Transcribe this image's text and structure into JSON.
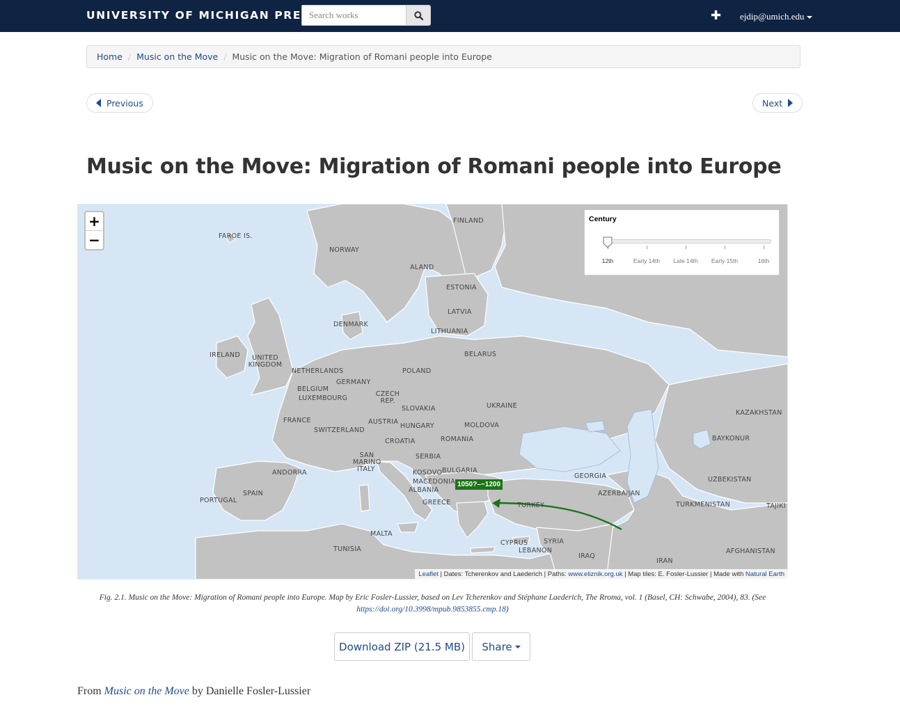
{
  "header": {
    "brand": "UNIVERSITY OF MICHIGAN PRESS",
    "search_placeholder": "Search works",
    "user": "ejdip@umich.edu"
  },
  "breadcrumb": {
    "home": "Home",
    "parent": "Music on the Move",
    "current": "Music on the Move: Migration of Romani people into Europe"
  },
  "pager": {
    "previous": "Previous",
    "next": "Next"
  },
  "title": "Music on the Move: Migration of Romani people into Europe",
  "map": {
    "zoom_in": "+",
    "zoom_out": "−",
    "marker_label": "1050?–~1200",
    "slider": {
      "title": "Century",
      "ticks": [
        "12th",
        "Early 14th",
        "Late 14th",
        "Early 15th",
        "16th"
      ],
      "selected": "12th"
    },
    "attribution": {
      "leaflet": "Leaflet",
      "dates": " | Dates: Tcherenkov and Laederich | Paths: ",
      "eliznik": "www.eliznik.org.uk",
      "tiles": " | Map tiles: E. Fosler-Lussier | Made with ",
      "natural_earth": "Natural Earth"
    },
    "labels": [
      {
        "id": "faroe",
        "text": "FAROE IS."
      },
      {
        "id": "finland",
        "text": "FINLAND"
      },
      {
        "id": "norway",
        "text": "NORWAY"
      },
      {
        "id": "aland",
        "text": "ALAND"
      },
      {
        "id": "estonia",
        "text": "ESTONIA"
      },
      {
        "id": "latvia",
        "text": "LATVIA"
      },
      {
        "id": "denmark",
        "text": "DENMARK"
      },
      {
        "id": "lithuania",
        "text": "LITHUANIA"
      },
      {
        "id": "ireland",
        "text": "IRELAND"
      },
      {
        "id": "uk",
        "text": "UNITED KINGDOM"
      },
      {
        "id": "netherlands",
        "text": "NETHERLANDS"
      },
      {
        "id": "belarus",
        "text": "BELARUS"
      },
      {
        "id": "poland",
        "text": "POLAND"
      },
      {
        "id": "germany",
        "text": "GERMANY"
      },
      {
        "id": "belgium",
        "text": "BELGIUM"
      },
      {
        "id": "luxembourg",
        "text": "LUXEMBOURG"
      },
      {
        "id": "czech",
        "text": "CZECH REP."
      },
      {
        "id": "ukraine",
        "text": "UKRAINE"
      },
      {
        "id": "kazakhstan",
        "text": "KAZAKHSTAN"
      },
      {
        "id": "slovakia",
        "text": "SLOVAKIA"
      },
      {
        "id": "france",
        "text": "FRANCE"
      },
      {
        "id": "austria",
        "text": "AUSTRIA"
      },
      {
        "id": "moldova",
        "text": "MOLDOVA"
      },
      {
        "id": "hungary",
        "text": "HUNGARY"
      },
      {
        "id": "switzerland",
        "text": "SWITZERLAND"
      },
      {
        "id": "croatia",
        "text": "CROATIA"
      },
      {
        "id": "romania",
        "text": "ROMANIA"
      },
      {
        "id": "baykonur",
        "text": "BAYKONUR"
      },
      {
        "id": "serbia",
        "text": "SERBIA"
      },
      {
        "id": "sanmarino",
        "text": "SAN MARINO"
      },
      {
        "id": "italy",
        "text": "ITALY"
      },
      {
        "id": "andorra",
        "text": "ANDORRA"
      },
      {
        "id": "kosovo",
        "text": "KOSOVO"
      },
      {
        "id": "bulgaria",
        "text": "BULGARIA"
      },
      {
        "id": "georgia",
        "text": "GEORGIA"
      },
      {
        "id": "macedonia",
        "text": "MACEDONIA"
      },
      {
        "id": "uzbekistan",
        "text": "UZBEKISTAN"
      },
      {
        "id": "albania",
        "text": "ALBANIA"
      },
      {
        "id": "azerbaijan",
        "text": "AZERBAIJAN"
      },
      {
        "id": "spain",
        "text": "SPAIN"
      },
      {
        "id": "portugal",
        "text": "PORTUGAL"
      },
      {
        "id": "greece",
        "text": "GREECE"
      },
      {
        "id": "turkey",
        "text": "TURKEY"
      },
      {
        "id": "turkmenistan",
        "text": "TURKMENISTAN"
      },
      {
        "id": "tajik",
        "text": "TAJIKI"
      },
      {
        "id": "malta",
        "text": "MALTA"
      },
      {
        "id": "syria",
        "text": "SYRIA"
      },
      {
        "id": "tunisia",
        "text": "TUNISIA"
      },
      {
        "id": "cyprus",
        "text": "CYPRUS"
      },
      {
        "id": "lebanon",
        "text": "LEBANON"
      },
      {
        "id": "afghanistan",
        "text": "AFGHANISTAN"
      },
      {
        "id": "iraq",
        "text": "IRAQ"
      },
      {
        "id": "iran",
        "text": "IRAN"
      }
    ]
  },
  "caption": {
    "text": "Fig. 2.1. Music on the Move: Migration of Romani people into Europe. Map by Eric Fosler-Lussier, based on Lev Tcherenkov and Stéphane Laederich, The Rroma, vol. 1 (Basel, CH: Schwabe, 2004), 83. (See ",
    "link": "https://doi.org/10.3998/mpub.9853855.cmp.18",
    "end": ")"
  },
  "actions": {
    "download": "Download ZIP (21.5 MB)",
    "share": "Share"
  },
  "from": {
    "prefix": "From ",
    "book": "Music on the Move",
    "suffix": " by Danielle Fosler-Lussier"
  },
  "colors": {
    "nav_bg": "#0f2343",
    "link": "#1e4a8a",
    "land": "#c2c2c2",
    "sea": "#d7e6f5",
    "marker": "#1a7417"
  }
}
